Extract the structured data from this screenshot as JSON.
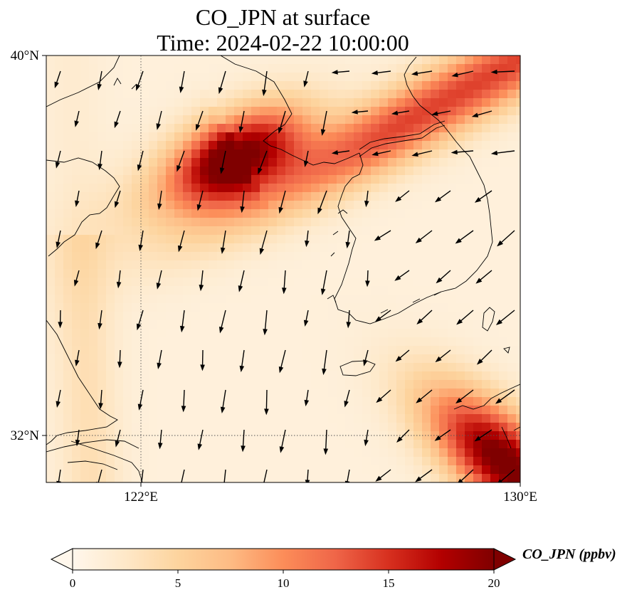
{
  "title": {
    "line1": "CO_JPN at surface",
    "line2": "Time: 2024-02-22 10:00:00"
  },
  "map": {
    "lat_labels": [
      "40°N",
      "32°N"
    ],
    "lon_labels": [
      "122°E",
      "130°E"
    ],
    "lat_range": [
      31,
      40
    ],
    "lon_range": [
      120,
      130
    ],
    "gridlines": "dotted",
    "field": "CO_JPN",
    "level": "surface",
    "features": [
      {
        "name": "plume-north",
        "lon": 124.1,
        "lat": 37.9,
        "peak": 19
      },
      {
        "name": "coastal-band",
        "lon": 127.8,
        "lat": 38.7,
        "peak": 17
      },
      {
        "name": "southeast-corner",
        "lon": 129.7,
        "lat": 31.4,
        "peak": 20
      }
    ]
  },
  "colorbar": {
    "label": "CO_JPN (ppbv)",
    "ticks": [
      "0",
      "5",
      "10",
      "15",
      "20"
    ],
    "min": 0,
    "max": 20,
    "extend": "both",
    "colormap": [
      "#fff7ec",
      "#fee8c8",
      "#fdd49e",
      "#fdbb84",
      "#fc8d59",
      "#ef6548",
      "#d7301f",
      "#b30000",
      "#7f0000"
    ]
  }
}
